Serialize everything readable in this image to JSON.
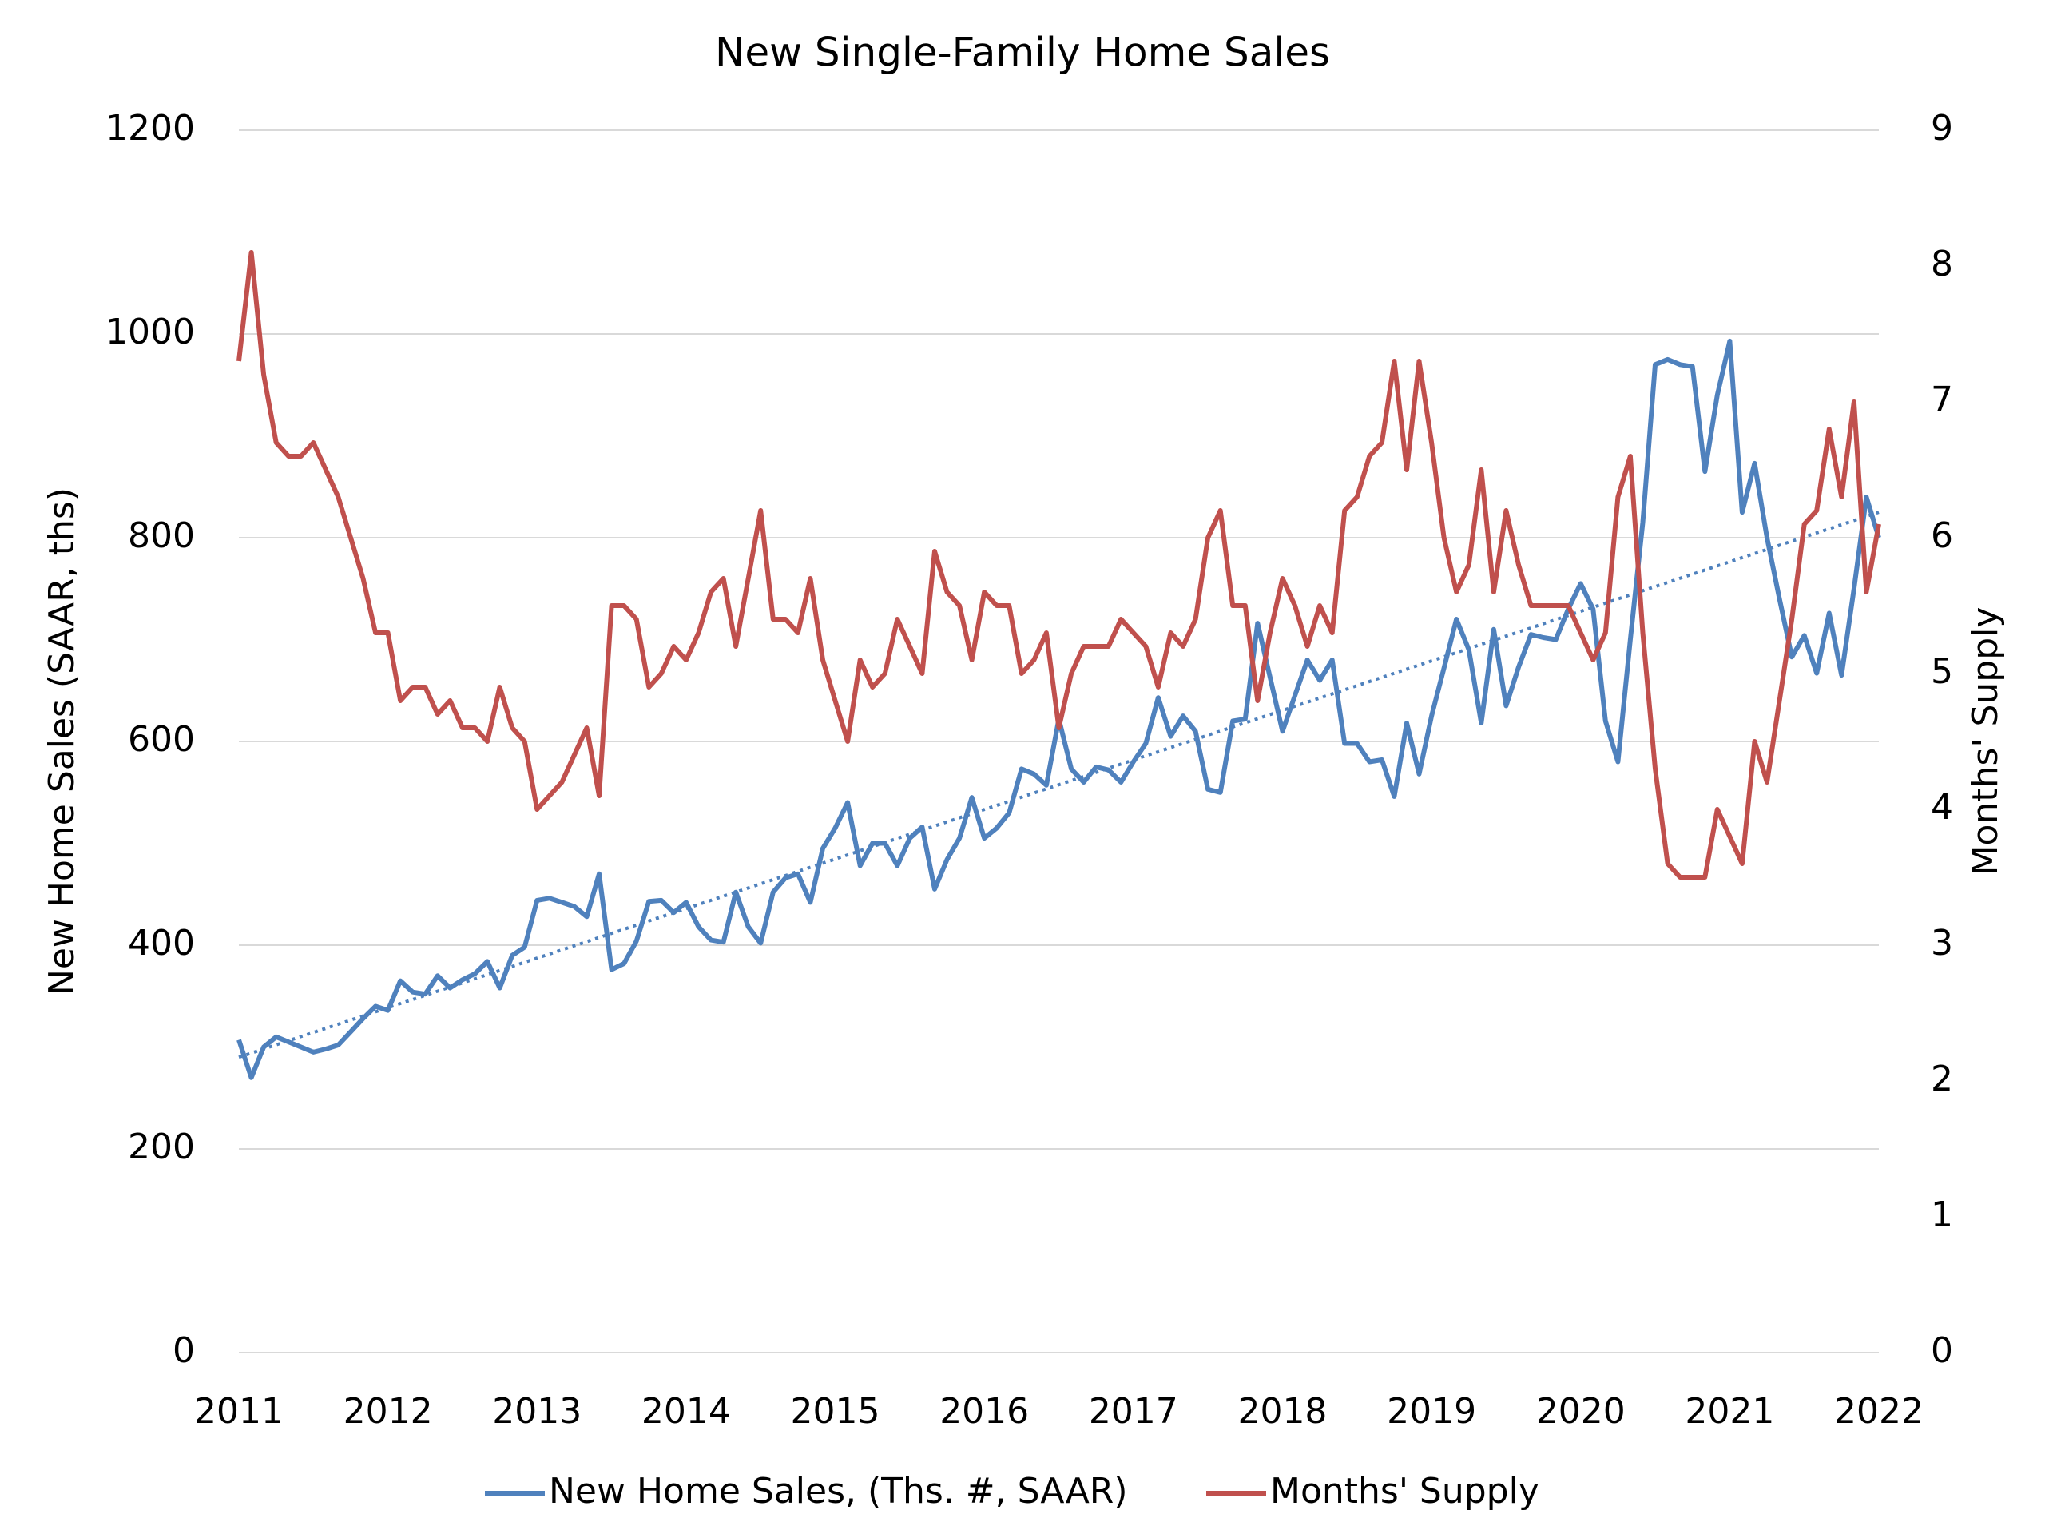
{
  "chart_data": {
    "type": "line",
    "title": "New Single-Family Home Sales",
    "y_label": "New Home Sales (SAAR, ths)",
    "y2_label": "Months' Supply",
    "categories": [
      "2011",
      null,
      null,
      null,
      null,
      null,
      null,
      null,
      null,
      null,
      null,
      null,
      "2012",
      null,
      null,
      null,
      null,
      null,
      null,
      null,
      null,
      null,
      null,
      null,
      "2013",
      null,
      null,
      null,
      null,
      null,
      null,
      null,
      null,
      null,
      null,
      null,
      "2014",
      null,
      null,
      null,
      null,
      null,
      null,
      null,
      null,
      null,
      null,
      null,
      "2015",
      null,
      null,
      null,
      null,
      null,
      null,
      null,
      null,
      null,
      null,
      null,
      "2016",
      null,
      null,
      null,
      null,
      null,
      null,
      null,
      null,
      null,
      null,
      null,
      "2017",
      null,
      null,
      null,
      null,
      null,
      null,
      null,
      null,
      null,
      null,
      null,
      "2018",
      null,
      null,
      null,
      null,
      null,
      null,
      null,
      null,
      null,
      null,
      null,
      "2019",
      null,
      null,
      null,
      null,
      null,
      null,
      null,
      null,
      null,
      null,
      null,
      "2020",
      null,
      null,
      null,
      null,
      null,
      null,
      null,
      null,
      null,
      null,
      null,
      "2021",
      null,
      null,
      null,
      null,
      null,
      null,
      null,
      null,
      null,
      null,
      null,
      "2022"
    ],
    "series": [
      {
        "name": "New Home Sales, (Ths. #, SAAR)",
        "color": "#4f81bd",
        "axis": "y",
        "values": [
          307,
          270,
          300,
          310,
          305,
          300,
          295,
          298,
          302,
          315,
          328,
          340,
          336,
          365,
          354,
          352,
          370,
          358,
          366,
          372,
          384,
          358,
          390,
          398,
          444,
          446,
          442,
          438,
          428,
          470,
          376,
          382,
          404,
          443,
          444,
          432,
          442,
          418,
          405,
          403,
          452,
          418,
          402,
          452,
          466,
          470,
          442,
          495,
          515,
          540,
          478,
          500,
          500,
          478,
          505,
          516,
          455,
          484,
          505,
          545,
          505,
          515,
          530,
          573,
          568,
          557,
          622,
          573,
          560,
          575,
          572,
          560,
          580,
          598,
          643,
          605,
          625,
          610,
          553,
          550,
          620,
          622,
          716,
          663,
          610,
          645,
          680,
          660,
          680,
          598,
          598,
          580,
          582,
          546,
          618,
          568,
          625,
          672,
          720,
          690,
          618,
          710,
          635,
          673,
          705,
          702,
          700,
          730,
          755,
          730,
          620,
          580,
          700,
          815,
          970,
          975,
          970,
          968,
          865,
          940,
          993,
          825,
          873,
          800,
          740,
          683,
          704,
          667,
          726,
          665,
          750,
          840,
          800
        ]
      },
      {
        "name": "Months' Supply",
        "color": "#c0504d",
        "axis": "y2",
        "values": [
          7.3,
          8.1,
          7.2,
          6.7,
          6.6,
          6.6,
          6.7,
          6.5,
          6.3,
          6.0,
          5.7,
          5.3,
          5.3,
          4.8,
          4.9,
          4.9,
          4.7,
          4.8,
          4.6,
          4.6,
          4.5,
          4.9,
          4.6,
          4.5,
          4.0,
          4.1,
          4.2,
          4.4,
          4.6,
          4.1,
          5.5,
          5.5,
          5.4,
          4.9,
          5.0,
          5.2,
          5.1,
          5.3,
          5.6,
          5.7,
          5.2,
          5.7,
          6.2,
          5.4,
          5.4,
          5.3,
          5.7,
          5.1,
          4.8,
          4.5,
          5.1,
          4.9,
          5.0,
          5.4,
          5.2,
          5.0,
          5.9,
          5.6,
          5.5,
          5.1,
          5.6,
          5.5,
          5.5,
          5.0,
          5.1,
          5.3,
          4.6,
          5.0,
          5.2,
          5.2,
          5.2,
          5.4,
          5.3,
          5.2,
          4.9,
          5.3,
          5.2,
          5.4,
          6.0,
          6.2,
          5.5,
          5.5,
          4.8,
          5.3,
          5.7,
          5.5,
          5.2,
          5.5,
          5.3,
          6.2,
          6.3,
          6.6,
          6.7,
          7.3,
          6.5,
          7.3,
          6.7,
          6.0,
          5.6,
          5.8,
          6.5,
          5.6,
          6.2,
          5.8,
          5.5,
          5.5,
          5.5,
          5.5,
          5.3,
          5.1,
          5.3,
          6.3,
          6.6,
          5.3,
          4.3,
          3.6,
          3.5,
          3.5,
          3.5,
          4.0,
          3.8,
          3.6,
          4.5,
          4.2,
          4.8,
          5.4,
          6.1,
          6.2,
          6.8,
          6.3,
          7.0,
          5.6,
          6.1
        ]
      }
    ],
    "trendline": {
      "color": "#4f81bd",
      "values": [
        290,
        825
      ]
    },
    "ylim": [
      0,
      1200
    ],
    "yticks": [
      0,
      200,
      400,
      600,
      800,
      1000,
      1200
    ],
    "y2lim": [
      0,
      9
    ],
    "y2ticks": [
      0,
      1,
      2,
      3,
      4,
      5,
      6,
      7,
      8,
      9
    ],
    "grid": true,
    "legend": "bottom"
  }
}
